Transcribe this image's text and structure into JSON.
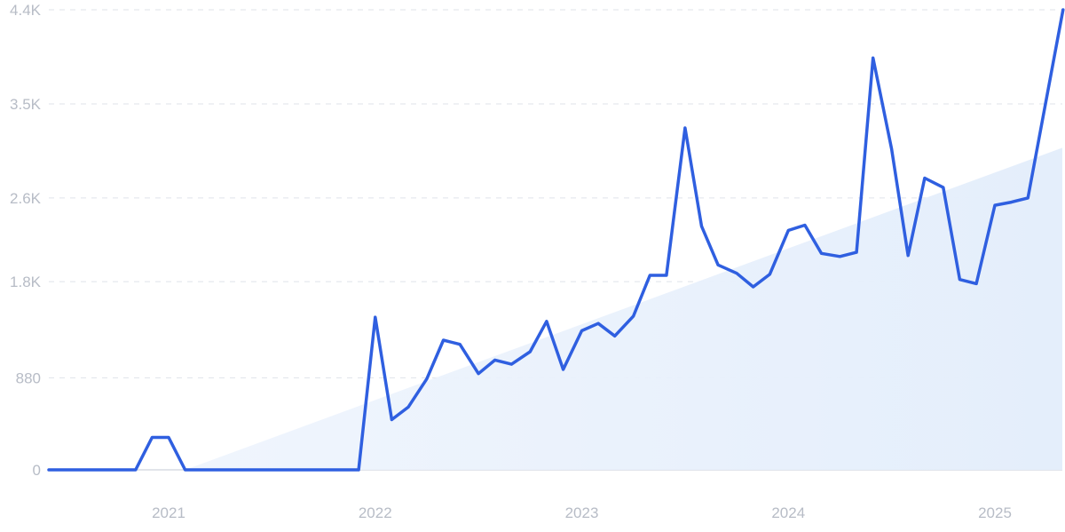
{
  "chart_data": {
    "type": "line",
    "title": "",
    "xlabel": "",
    "ylabel": "",
    "grid": true,
    "legend": "none",
    "ylim": [
      0,
      4400
    ],
    "y_ticks": [
      0,
      880,
      1800,
      2600,
      3500,
      4400
    ],
    "y_tick_labels": [
      "0",
      "880",
      "1.8K",
      "2.6K",
      "3.5K",
      "4.4K"
    ],
    "x_ticks": [
      2021,
      2022,
      2023,
      2024,
      2025
    ],
    "x_tick_labels": [
      "2021",
      "2022",
      "2023",
      "2024",
      "2025"
    ],
    "colors": {
      "line": "#2f5fe0",
      "trend_fill": "#e4eefb",
      "grid": "#dfe3ea",
      "tick_text": "#b7bcc6"
    },
    "series": [
      {
        "values": [
          [
            2020.42,
            0
          ],
          [
            2020.84,
            0
          ],
          [
            2020.92,
            310
          ],
          [
            2021.0,
            310
          ],
          [
            2021.08,
            0
          ],
          [
            2021.92,
            0
          ],
          [
            2022.0,
            1460
          ],
          [
            2022.08,
            480
          ],
          [
            2022.16,
            600
          ],
          [
            2022.25,
            870
          ],
          [
            2022.33,
            1240
          ],
          [
            2022.41,
            1200
          ],
          [
            2022.5,
            920
          ],
          [
            2022.58,
            1050
          ],
          [
            2022.66,
            1010
          ],
          [
            2022.75,
            1130
          ],
          [
            2022.83,
            1420
          ],
          [
            2022.91,
            960
          ],
          [
            2023.0,
            1330
          ],
          [
            2023.08,
            1400
          ],
          [
            2023.16,
            1280
          ],
          [
            2023.25,
            1470
          ],
          [
            2023.33,
            1860
          ],
          [
            2023.41,
            1860
          ],
          [
            2023.5,
            3270
          ],
          [
            2023.58,
            2330
          ],
          [
            2023.66,
            1960
          ],
          [
            2023.75,
            1880
          ],
          [
            2023.83,
            1750
          ],
          [
            2023.91,
            1870
          ],
          [
            2024.0,
            2290
          ],
          [
            2024.08,
            2340
          ],
          [
            2024.16,
            2070
          ],
          [
            2024.25,
            2040
          ],
          [
            2024.33,
            2080
          ],
          [
            2024.41,
            3940
          ],
          [
            2024.5,
            3070
          ],
          [
            2024.58,
            2050
          ],
          [
            2024.66,
            2790
          ],
          [
            2024.75,
            2700
          ],
          [
            2024.83,
            1820
          ],
          [
            2024.91,
            1780
          ],
          [
            2025.0,
            2530
          ],
          [
            2025.08,
            2560
          ],
          [
            2025.16,
            2600
          ],
          [
            2025.33,
            4400
          ]
        ]
      }
    ],
    "trend": {
      "start": [
        2021.08,
        0
      ],
      "end": [
        2025.33,
        3080
      ]
    }
  }
}
